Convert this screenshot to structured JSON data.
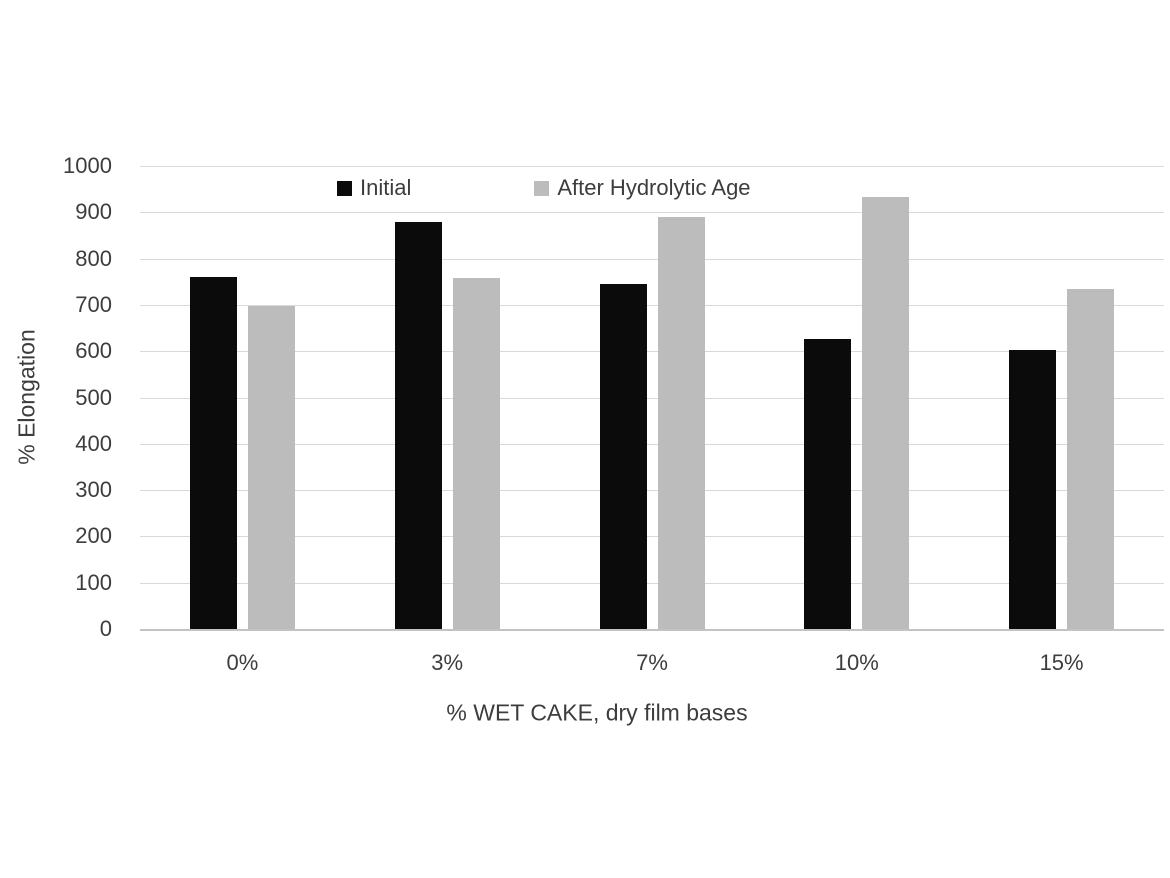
{
  "chart_data": {
    "type": "bar",
    "title": "",
    "categories": [
      "0%",
      "3%",
      "7%",
      "10%",
      "15%"
    ],
    "series": [
      {
        "name": "Initial",
        "color": "#0b0b0b",
        "values": [
          760,
          880,
          745,
          627,
          603
        ]
      },
      {
        "name": "After Hydrolytic Age",
        "color": "#bcbcbc",
        "values": [
          698,
          758,
          889,
          932,
          734
        ]
      }
    ],
    "xlabel": "% WET CAKE, dry film bases",
    "ylabel": "% Elongation",
    "ylim": [
      0,
      1000
    ],
    "ytick_step": 100,
    "grid": true,
    "legend_position": "top-inside"
  },
  "colors": {
    "background": "#ffffff",
    "gridline": "#d9d9d9",
    "axis_line": "#c3c3c3",
    "text": "#3d3d3d"
  }
}
